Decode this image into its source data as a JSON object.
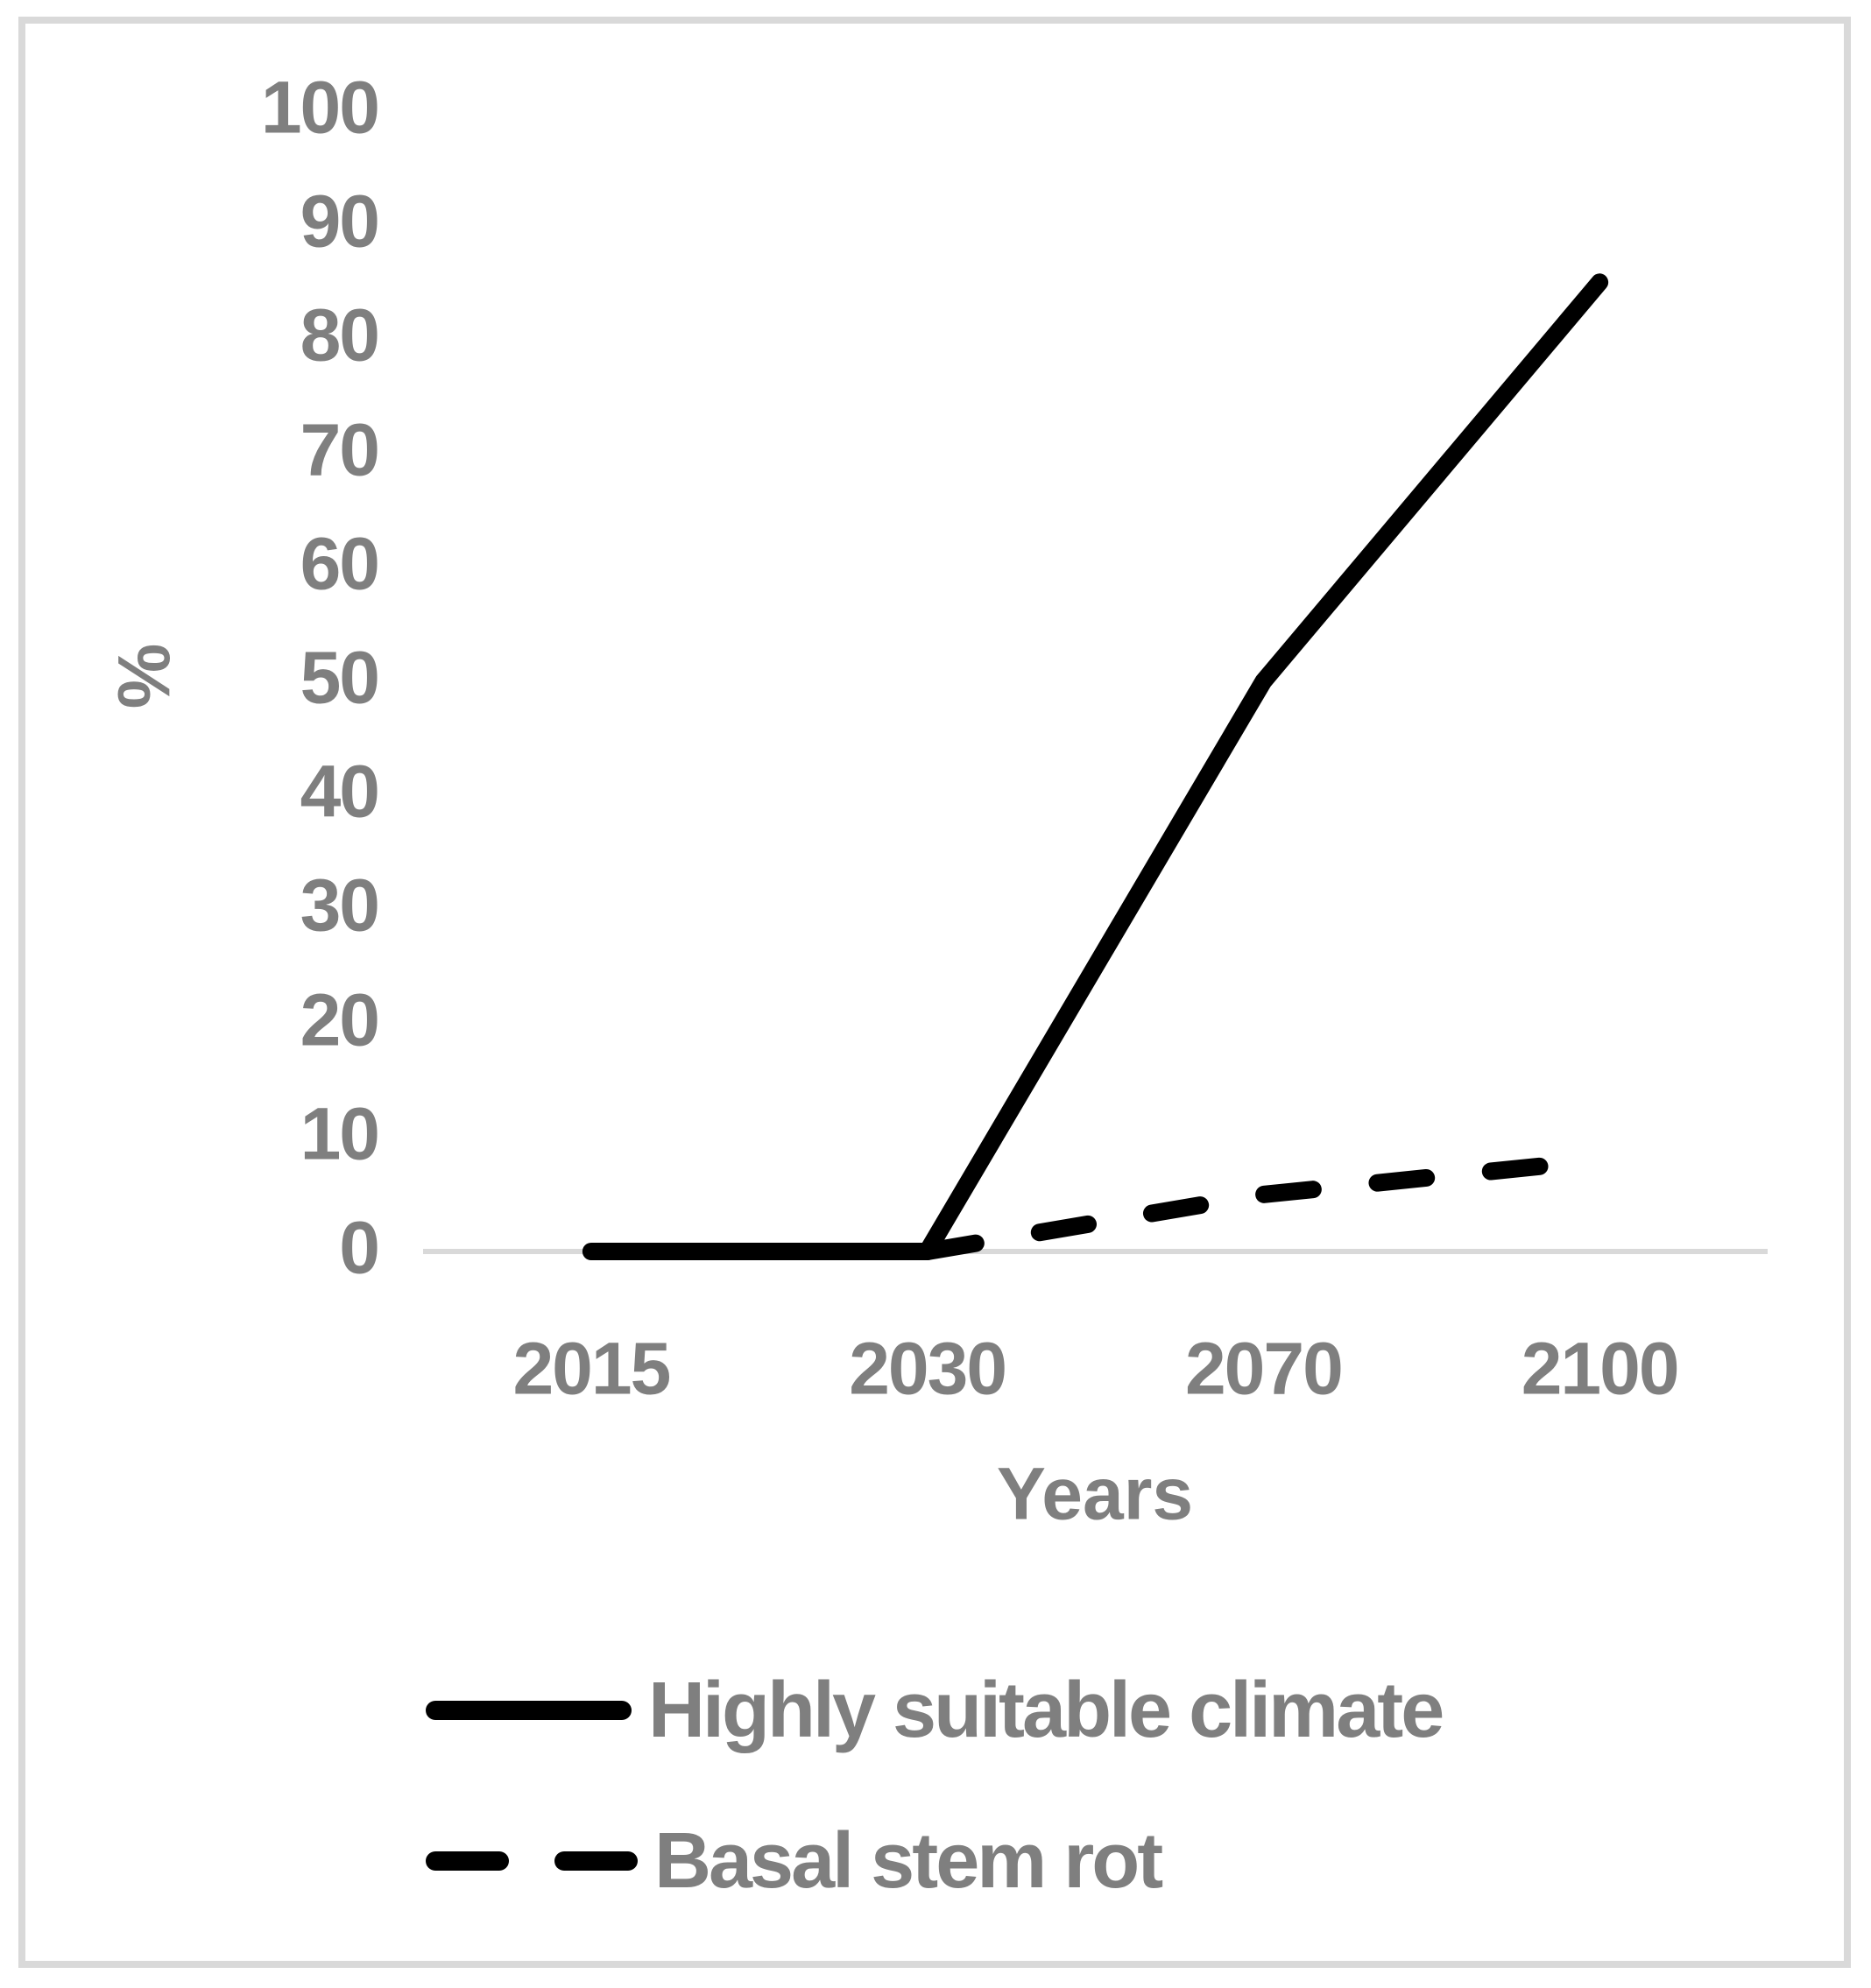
{
  "chart_data": {
    "type": "line",
    "title": "",
    "categories": [
      "2015",
      "2030",
      "2070",
      "2100"
    ],
    "series": [
      {
        "name": "Highly suitable climate",
        "style": "solid",
        "color": "#000000",
        "values": [
          0,
          0,
          50,
          85
        ]
      },
      {
        "name": "Basal stem rot",
        "style": "dashed",
        "color": "#000000",
        "values": [
          null,
          0,
          5,
          8
        ]
      }
    ],
    "xlabel": "Years",
    "ylabel": "%",
    "ylim": [
      0,
      100
    ],
    "y_ticks": [
      0,
      10,
      20,
      30,
      40,
      50,
      60,
      70,
      80,
      90,
      100
    ],
    "grid": false,
    "axis_baseline_color": "#d9d9d9",
    "frame_border_color": "#d9d9d9",
    "text_color": "#7f7f7f",
    "legend_position": "bottom-left"
  }
}
